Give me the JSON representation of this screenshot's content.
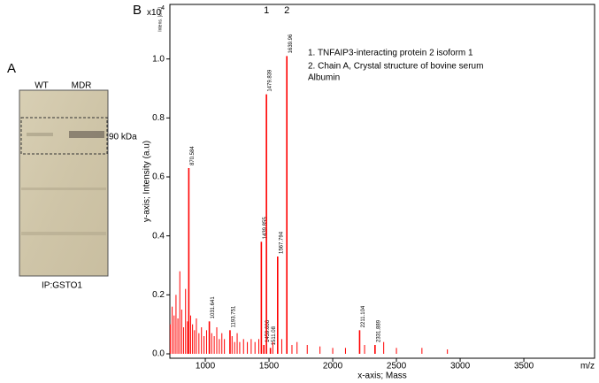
{
  "panel_a": {
    "label": "A",
    "lanes": [
      "WT",
      "MDR"
    ],
    "band_label": "90 kDa",
    "caption": "IP:GSTO1"
  },
  "chart_data": {
    "type": "spectrum",
    "panel_label": "B",
    "y_scale_label": "x10",
    "y_scale_exponent": "4",
    "y_unit_note": "Intens. [a.u.]",
    "y_label": "y-axis; Intensity (a.u)",
    "x_label": "x-axis; Mass",
    "x_unit": "m/z",
    "legend_lines": [
      "1. TNFAIP3-interacting protein 2 isoform 1",
      "2. Chain A, Crystal structure of bovine serum",
      "Albumin"
    ],
    "annotations": [
      {
        "text": "1",
        "x": 1479.839
      },
      {
        "text": "2",
        "x": 1639.96
      }
    ],
    "xlim": [
      722,
      4055
    ],
    "ylim": [
      -0.015,
      1.185
    ],
    "xticks": [
      1000,
      1500,
      2000,
      2500,
      3000,
      3500
    ],
    "yticks": [
      {
        "value": 0,
        "label": "0.0"
      },
      0.2,
      0.4,
      0.6,
      0.8,
      {
        "value": 1,
        "label": "1.0"
      }
    ],
    "series": [
      {
        "color": "#ff0000",
        "labeled": true,
        "x": [
          870.584,
          1031.641,
          1193.751,
          1439.855,
          1459.606,
          1479.839,
          1511.08,
          1567.794,
          1639.96,
          2211.104,
          2331.889
        ],
        "values": [
          0.63,
          0.11,
          0.08,
          0.38,
          0.03,
          0.88,
          0.02,
          0.33,
          1.01,
          0.08,
          0.03
        ]
      },
      {
        "color": "#ff0000",
        "labeled": false,
        "x": [
          725,
          740,
          755,
          770,
          785,
          800,
          815,
          830,
          845,
          860,
          885,
          900,
          915,
          930,
          950,
          970,
          990,
          1010,
          1050,
          1070,
          1090,
          1110,
          1130,
          1150,
          1210,
          1230,
          1250,
          1270,
          1300,
          1330,
          1360,
          1390,
          1420,
          1530,
          1600,
          1680,
          1720,
          1800,
          1900,
          2000,
          2100,
          2250,
          2400,
          2500,
          2700,
          2900
        ],
        "values": [
          0.1,
          0.16,
          0.13,
          0.2,
          0.12,
          0.28,
          0.15,
          0.09,
          0.22,
          0.11,
          0.13,
          0.1,
          0.08,
          0.12,
          0.07,
          0.09,
          0.06,
          0.08,
          0.07,
          0.06,
          0.09,
          0.05,
          0.07,
          0.05,
          0.06,
          0.04,
          0.07,
          0.04,
          0.05,
          0.04,
          0.05,
          0.04,
          0.05,
          0.04,
          0.05,
          0.03,
          0.04,
          0.03,
          0.025,
          0.02,
          0.02,
          0.03,
          0.04,
          0.02,
          0.02,
          0.015
        ]
      }
    ]
  }
}
